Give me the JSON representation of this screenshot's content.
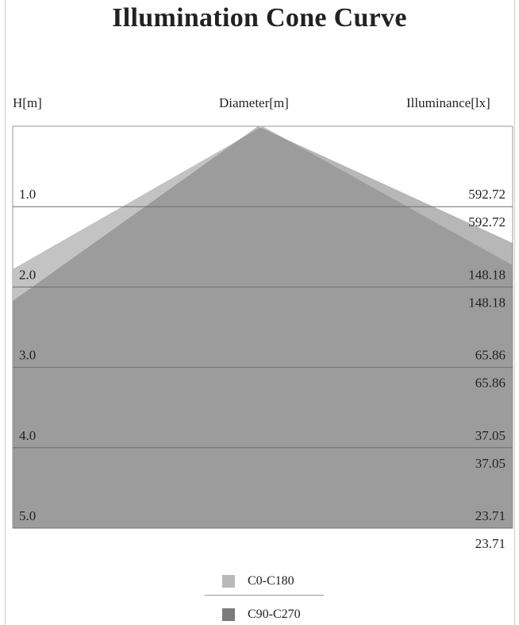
{
  "header": {
    "title": "Illumination Cone Curve",
    "h_label": "H[m]",
    "diameter_label": "Diameter[m]",
    "illuminance_label": "Illuminance[lx]"
  },
  "chart_data": {
    "type": "area",
    "title": "Illumination Cone Curve",
    "xlabel": "Diameter[m]",
    "ylabel": "H[m]",
    "heights": [
      1.0,
      2.0,
      3.0,
      4.0,
      5.0
    ],
    "height_labels": [
      "1.0",
      "2.0",
      "3.0",
      "4.0",
      "5.0"
    ],
    "ylim": [
      0,
      5
    ],
    "grid": true,
    "legend": "bottom",
    "series": [
      {
        "name": "C0-C180",
        "color": "#b9b9b9",
        "illuminance": [
          592.72,
          148.18,
          65.86,
          37.05,
          23.71
        ],
        "illuminance_labels": [
          "592.72",
          "148.18",
          "65.86",
          "37.05",
          "23.71"
        ]
      },
      {
        "name": "C90-C270",
        "color": "#7c7c7c",
        "illuminance": [
          592.72,
          148.18,
          65.86,
          37.05,
          23.71
        ],
        "illuminance_labels": [
          "592.72",
          "148.18",
          "65.86",
          "37.05",
          "23.71"
        ]
      }
    ]
  },
  "legend": {
    "items": [
      {
        "label": "C0-C180",
        "color": "#b9b9b9"
      },
      {
        "label": "C90-C270",
        "color": "#7c7c7c"
      }
    ]
  }
}
